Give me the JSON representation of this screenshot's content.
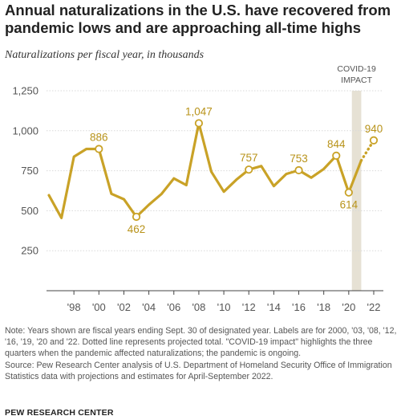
{
  "title": "Annual naturalizations in the U.S. have recovered from pandemic lows and are approaching all-time highs",
  "subtitle": "Naturalizations per fiscal year, in thousands",
  "covid_label_line1": "COVID-19",
  "covid_label_line2": "IMPACT",
  "note": "Note: Years shown are fiscal years ending Sept. 30 of designated year. Labels are for 2000, '03, '08, '12, '16, '19, '20 and '22. Dotted line represents projected total. \"COVID-19 impact\" highlights the three quarters when the pandemic affected naturalizations; the pandemic is ongoing.",
  "source": "Source: Pew Research Center analysis of U.S. Department of Homeland Security Office of Immigration Statistics data with projections and estimates for April-September 2022.",
  "footer": "PEW RESEARCH CENTER",
  "colors": {
    "line": "#C9A227",
    "label": "#B8931A",
    "covid_band": "#E6E1D4",
    "grid": "#D9D9D9",
    "axis": "#444444"
  },
  "chart_data": {
    "type": "line",
    "title": "Annual naturalizations in the U.S. have recovered from pandemic lows and are approaching all-time highs",
    "subtitle": "Naturalizations per fiscal year, in thousands",
    "xlabel": "",
    "ylabel": "",
    "ylim": [
      0,
      1250
    ],
    "xlim": [
      1995.5,
      2022.6
    ],
    "yticks": [
      250,
      500,
      750,
      1000,
      1250
    ],
    "ytick_labels": [
      "250",
      "500",
      "750",
      "1,000",
      "1,250"
    ],
    "xticks": [
      1998,
      2000,
      2002,
      2004,
      2006,
      2008,
      2010,
      2012,
      2014,
      2016,
      2018,
      2020,
      2022
    ],
    "xtick_labels": [
      "'98",
      "'00",
      "'02",
      "'04",
      "'06",
      "'08",
      "'10",
      "'12",
      "'14",
      "'16",
      "'18",
      "'20",
      "'22"
    ],
    "grid": true,
    "covid_band": [
      2020.25,
      2021
    ],
    "series": [
      {
        "values_x": [
          1996,
          1997,
          1998,
          1999,
          2000,
          2001,
          2002,
          2003,
          2004,
          2005,
          2006,
          2007,
          2008,
          2009,
          2010,
          2011,
          2012,
          2013,
          2014,
          2015,
          2016,
          2017,
          2018,
          2019,
          2020,
          2021
        ],
        "values_y": [
          597,
          455,
          838,
          886,
          886,
          606,
          572,
          462,
          537,
          604,
          702,
          660,
          1047,
          744,
          619,
          694,
          757,
          779,
          654,
          730,
          753,
          707,
          761,
          844,
          614,
          814
        ],
        "style": "solid"
      },
      {
        "values_x": [
          2021,
          2022
        ],
        "values_y": [
          814,
          940
        ],
        "style": "dotted",
        "projected": true
      }
    ],
    "labeled_points": [
      {
        "x": 2000,
        "y": 886,
        "label": "886",
        "pos": "above"
      },
      {
        "x": 2003,
        "y": 462,
        "label": "462",
        "pos": "below"
      },
      {
        "x": 2008,
        "y": 1047,
        "label": "1,047",
        "pos": "above"
      },
      {
        "x": 2012,
        "y": 757,
        "label": "757",
        "pos": "above"
      },
      {
        "x": 2016,
        "y": 753,
        "label": "753",
        "pos": "above"
      },
      {
        "x": 2019,
        "y": 844,
        "label": "844",
        "pos": "above"
      },
      {
        "x": 2020,
        "y": 614,
        "label": "614",
        "pos": "below"
      },
      {
        "x": 2022,
        "y": 940,
        "label": "940",
        "pos": "above"
      }
    ]
  }
}
